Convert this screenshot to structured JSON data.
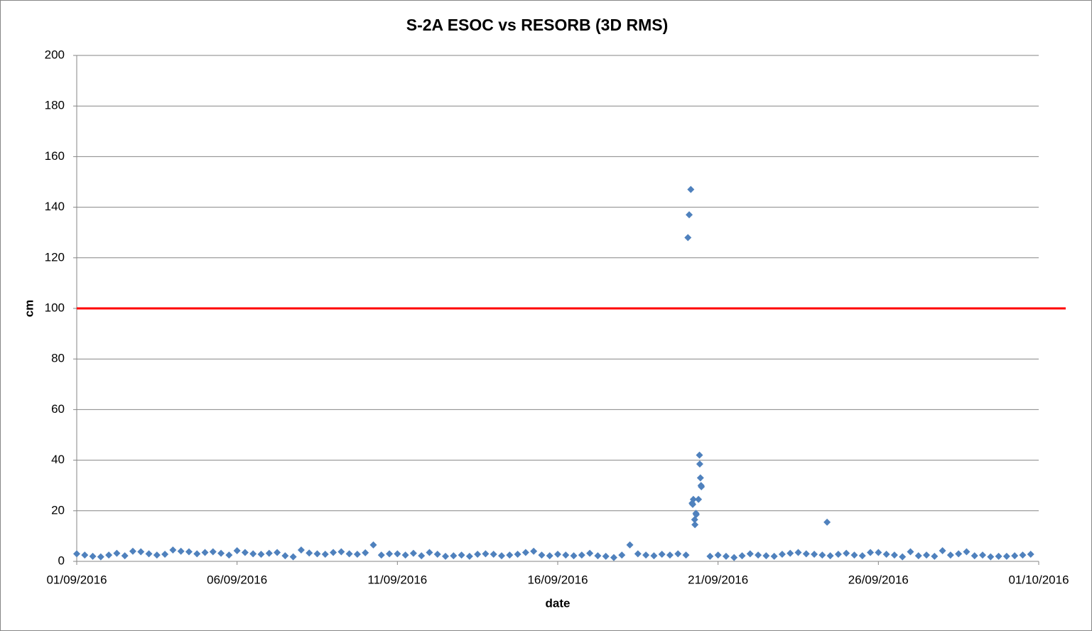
{
  "chart_data": {
    "type": "scatter",
    "title": "S-2A ESOC vs RESORB (3D RMS)",
    "x_label": "date",
    "y_label": "cm",
    "series": [
      {
        "name": "ESOC vs RESORB",
        "color": "#4f81bd",
        "x": [
          0,
          0.25,
          0.5,
          0.75,
          1,
          1.25,
          1.5,
          1.75,
          2,
          2.25,
          2.5,
          2.75,
          3,
          3.25,
          3.5,
          3.75,
          4,
          4.25,
          4.5,
          4.75,
          5,
          5.25,
          5.5,
          5.75,
          6,
          6.25,
          6.5,
          6.75,
          7,
          7.25,
          7.5,
          7.75,
          8,
          8.25,
          8.5,
          8.75,
          9,
          9.25,
          9.5,
          9.75,
          10,
          10.25,
          10.5,
          10.75,
          11,
          11.25,
          11.5,
          11.75,
          12,
          12.25,
          12.5,
          12.75,
          13,
          13.25,
          13.5,
          13.75,
          14,
          14.25,
          14.5,
          14.75,
          15,
          15.25,
          15.5,
          15.75,
          16,
          16.25,
          16.5,
          16.75,
          17,
          17.25,
          17.5,
          17.75,
          18,
          18.25,
          18.5,
          18.75,
          19,
          19.06,
          19.1,
          19.15,
          19.19,
          19.21,
          19.23,
          19.27,
          19.28,
          19.31,
          19.32,
          19.39,
          19.42,
          19.43,
          19.45,
          19.47,
          19.48,
          19.75,
          20,
          20.25,
          20.5,
          20.75,
          21,
          21.25,
          21.5,
          21.75,
          22,
          22.25,
          22.5,
          22.75,
          23,
          23.25,
          23.4,
          23.5,
          23.75,
          24,
          24.25,
          24.5,
          24.75,
          25,
          25.25,
          25.5,
          25.75,
          26,
          26.25,
          26.5,
          26.75,
          27,
          27.25,
          27.5,
          27.75,
          28,
          28.25,
          28.5,
          28.75,
          29,
          29.25,
          29.5,
          29.75
        ],
        "values": [
          3,
          2.5,
          2,
          1.8,
          2.5,
          3.2,
          2.2,
          4,
          3.8,
          3,
          2.5,
          2.8,
          4.5,
          4,
          3.8,
          3,
          3.5,
          3.8,
          3.2,
          2.5,
          4.2,
          3.5,
          3,
          2.8,
          3.2,
          3.5,
          2.2,
          1.8,
          4.5,
          3.3,
          3,
          2.8,
          3.5,
          3.8,
          3,
          2.8,
          3.4,
          6.5,
          2.5,
          3,
          3,
          2.5,
          3.2,
          2.2,
          3.5,
          2.8,
          2,
          2.2,
          2.5,
          2,
          2.8,
          3,
          2.8,
          2.2,
          2.5,
          2.8,
          3.5,
          4,
          2.5,
          2.2,
          2.8,
          2.5,
          2.2,
          2.5,
          3.2,
          2.2,
          2,
          1.5,
          2.5,
          6.5,
          3,
          2.5,
          2.2,
          2.8,
          2.5,
          3,
          2.5,
          128,
          137,
          147,
          23,
          22.5,
          24.5,
          16.5,
          14.5,
          19,
          18.5,
          24.5,
          42,
          38.5,
          33,
          30,
          29.5,
          2,
          2.5,
          2,
          1.5,
          2.2,
          3,
          2.5,
          2.2,
          2,
          2.8,
          3.2,
          3.5,
          3,
          2.8,
          2.5,
          15.5,
          2.2,
          2.8,
          3.2,
          2.5,
          2.2,
          3.5,
          3.5,
          2.8,
          2.5,
          1.8,
          3.8,
          2.2,
          2.5,
          2,
          4.2,
          2.5,
          3,
          3.8,
          2.2,
          2.5,
          1.8,
          2,
          2,
          2.2,
          2.5,
          2.8
        ]
      }
    ],
    "threshold": {
      "value": 100,
      "color": "#ff0000"
    },
    "xlim": [
      0,
      30
    ],
    "xticks": [
      {
        "value": 0,
        "label": "01/09/2016"
      },
      {
        "value": 5,
        "label": "06/09/2016"
      },
      {
        "value": 10,
        "label": "11/09/2016"
      },
      {
        "value": 15,
        "label": "16/09/2016"
      },
      {
        "value": 20,
        "label": "21/09/2016"
      },
      {
        "value": 25,
        "label": "26/09/2016"
      },
      {
        "value": 30,
        "label": "01/10/2016"
      }
    ],
    "ylim": [
      0,
      200
    ],
    "yticks": [
      0,
      20,
      40,
      60,
      80,
      100,
      120,
      140,
      160,
      180,
      200
    ],
    "grid": true
  }
}
